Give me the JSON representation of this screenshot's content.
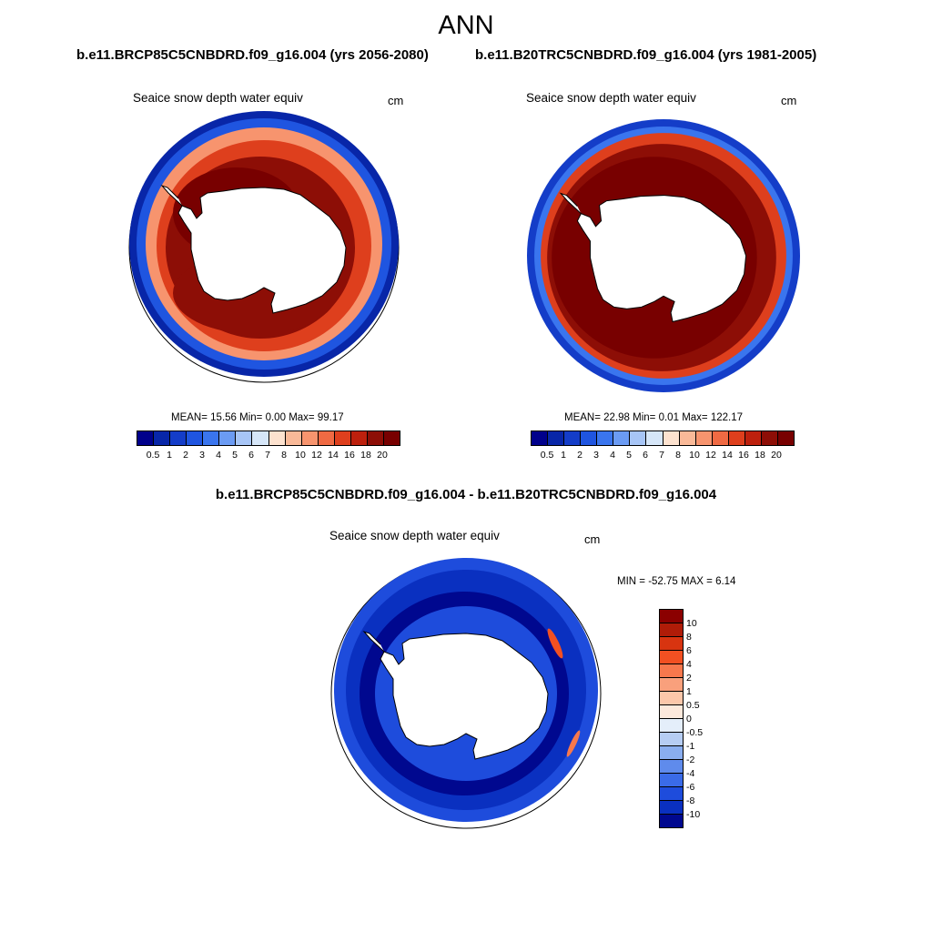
{
  "header": {
    "season": "ANN",
    "case_left": "b.e11.BRCP85C5CNBDRD.f09_g16.004 (yrs 2056-2080)",
    "case_right": "b.e11.B20TRC5CNBDRD.f09_g16.004 (yrs 1981-2005)",
    "diff_title": "b.e11.BRCP85C5CNBDRD.f09_g16.004 - b.e11.B20TRC5CNBDRD.f09_g16.004"
  },
  "chart_data": [
    {
      "type": "heatmap",
      "projection": "south-polar-stereographic",
      "title": "Seaice snow depth water equiv",
      "units": "cm",
      "stats": {
        "mean_label": "MEAN=",
        "mean": "15.56",
        "min_label": "Min=",
        "min": "0.00",
        "max_label": "Max=",
        "max": "99.17"
      },
      "colorbar": {
        "orientation": "horizontal",
        "ticks": [
          "0.5",
          "1",
          "2",
          "3",
          "4",
          "5",
          "6",
          "7",
          "8",
          "10",
          "12",
          "14",
          "16",
          "18",
          "20"
        ],
        "colors": [
          "#00008b",
          "#0826a8",
          "#143dc8",
          "#1f55e0",
          "#3a75ee",
          "#6b9bf3",
          "#a7c5f6",
          "#d6e6f8",
          "#fde2cf",
          "#f9b998",
          "#f7946e",
          "#f06a43",
          "#de3f1d",
          "#bd200d",
          "#8d0e06",
          "#780000"
        ]
      },
      "notes": "Regional field: outer ice edge ~0.5-5 cm (blue), interior pack 10-20 cm, Weddell/Ross sectors >20 cm."
    },
    {
      "type": "heatmap",
      "projection": "south-polar-stereographic",
      "title": "Seaice snow depth water equiv",
      "units": "cm",
      "stats": {
        "mean_label": "MEAN=",
        "mean": "22.98",
        "min_label": "Min=",
        "min": "0.01",
        "max_label": "Max=",
        "max": "122.17"
      },
      "colorbar": {
        "orientation": "horizontal",
        "ticks": [
          "0.5",
          "1",
          "2",
          "3",
          "4",
          "5",
          "6",
          "7",
          "8",
          "10",
          "12",
          "14",
          "16",
          "18",
          "20"
        ],
        "colors": [
          "#00008b",
          "#0826a8",
          "#143dc8",
          "#1f55e0",
          "#3a75ee",
          "#6b9bf3",
          "#a7c5f6",
          "#d6e6f8",
          "#fde2cf",
          "#f9b998",
          "#f7946e",
          "#f06a43",
          "#de3f1d",
          "#bd200d",
          "#8d0e06",
          "#780000"
        ]
      },
      "notes": "Broad pack >20 cm around the continent, thin blue ice-edge band."
    },
    {
      "type": "heatmap",
      "projection": "south-polar-stereographic",
      "title": "Seaice snow depth water equiv",
      "units": "cm",
      "stats": {
        "min_label": "MIN =",
        "min": "-52.75",
        "max_label": "MAX =",
        "max": "6.14"
      },
      "colorbar": {
        "orientation": "vertical",
        "ticks": [
          "10",
          "8",
          "6",
          "4",
          "2",
          "1",
          "0.5",
          "0",
          "-0.5",
          "-1",
          "-2",
          "-4",
          "-6",
          "-8",
          "-10"
        ],
        "colors": [
          "#8b0000",
          "#b01c08",
          "#d83410",
          "#f25022",
          "#f7784d",
          "#f9a07c",
          "#fcc7aa",
          "#fde9dc",
          "#e4eefa",
          "#b6cdf3",
          "#8aaeef",
          "#5f8bec",
          "#3a6be8",
          "#1e4cdc",
          "#0a30c0",
          "#00088f"
        ]
      },
      "notes": "Nearly all negative (future minus historical); small positive streaks east of the Antarctic Peninsula and off East Antarctica."
    }
  ]
}
